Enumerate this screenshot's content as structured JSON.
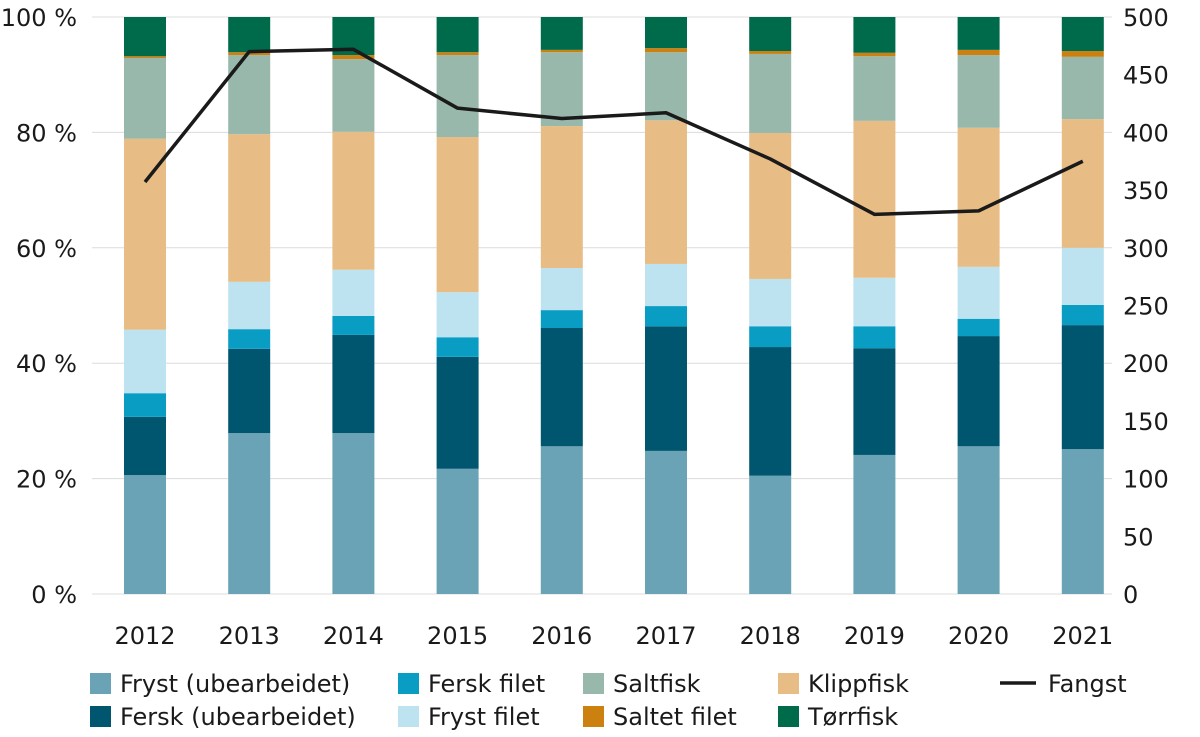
{
  "chart_data": {
    "type": "bar",
    "stacked": true,
    "categories": [
      "2012",
      "2013",
      "2014",
      "2015",
      "2016",
      "2017",
      "2018",
      "2019",
      "2020",
      "2021"
    ],
    "y_left": {
      "ylim": [
        0,
        100
      ],
      "ticks": [
        "0 %",
        "20 %",
        "40 %",
        "60 %",
        "80 %",
        "100 %"
      ],
      "tick_values": [
        0,
        20,
        40,
        60,
        80,
        100
      ]
    },
    "y_right": {
      "ylim": [
        0,
        500
      ],
      "ticks": [
        "0",
        "50",
        "100",
        "150",
        "200",
        "250",
        "300",
        "350",
        "400",
        "450",
        "500"
      ],
      "tick_values": [
        0,
        50,
        100,
        150,
        200,
        250,
        300,
        350,
        400,
        450,
        500
      ]
    },
    "grid": "horizontal",
    "legend_position": "bottom",
    "series": [
      {
        "name": "Fryst (ubearbeidet)",
        "color": "#6aa3b5",
        "values": [
          20.6,
          27.9,
          27.9,
          21.7,
          25.6,
          24.8,
          20.5,
          24.1,
          25.6,
          25.1
        ]
      },
      {
        "name": "Fersk (ubearbeidet)",
        "color": "#00566e",
        "values": [
          10.1,
          14.6,
          17.0,
          19.4,
          20.5,
          21.6,
          22.3,
          18.5,
          19.1,
          21.5
        ]
      },
      {
        "name": "Fersk filet",
        "color": "#0a9dc4",
        "values": [
          4.1,
          3.4,
          3.3,
          3.4,
          3.1,
          3.5,
          3.6,
          3.8,
          3.0,
          3.5
        ]
      },
      {
        "name": "Fryst filet",
        "color": "#bde3f0",
        "values": [
          11.0,
          8.2,
          8.0,
          7.8,
          7.3,
          7.3,
          8.2,
          8.4,
          9.0,
          9.9
        ]
      },
      {
        "name": "Klippfisk",
        "color": "#e8bd85",
        "values": [
          33.1,
          25.6,
          23.9,
          26.9,
          24.6,
          24.9,
          25.3,
          27.2,
          24.1,
          22.3
        ]
      },
      {
        "name": "Saltfisk",
        "color": "#98b8ab",
        "values": [
          14.0,
          13.7,
          12.6,
          14.2,
          12.8,
          11.8,
          13.7,
          11.2,
          12.6,
          10.8
        ]
      },
      {
        "name": "Saltet filet",
        "color": "#cc8010",
        "values": [
          0.3,
          0.5,
          0.7,
          0.5,
          0.4,
          0.7,
          0.5,
          0.6,
          0.9,
          1.0
        ]
      },
      {
        "name": "Tørrfisk",
        "color": "#006b4a",
        "values": [
          6.8,
          6.1,
          6.6,
          6.1,
          5.7,
          5.4,
          5.9,
          6.2,
          5.7,
          5.9
        ]
      }
    ],
    "line_series": {
      "name": "Fangst",
      "color": "#1a1a1a",
      "axis": "right",
      "values": [
        357,
        470,
        472,
        421,
        412,
        417,
        377,
        329,
        332,
        375
      ]
    },
    "legend_order": [
      "Fryst (ubearbeidet)",
      "Fersk filet",
      "Saltfisk",
      "Klippfisk",
      "Fangst",
      "Fersk (ubearbeidet)",
      "Fryst filet",
      "Saltet filet",
      "Tørrfisk"
    ]
  }
}
